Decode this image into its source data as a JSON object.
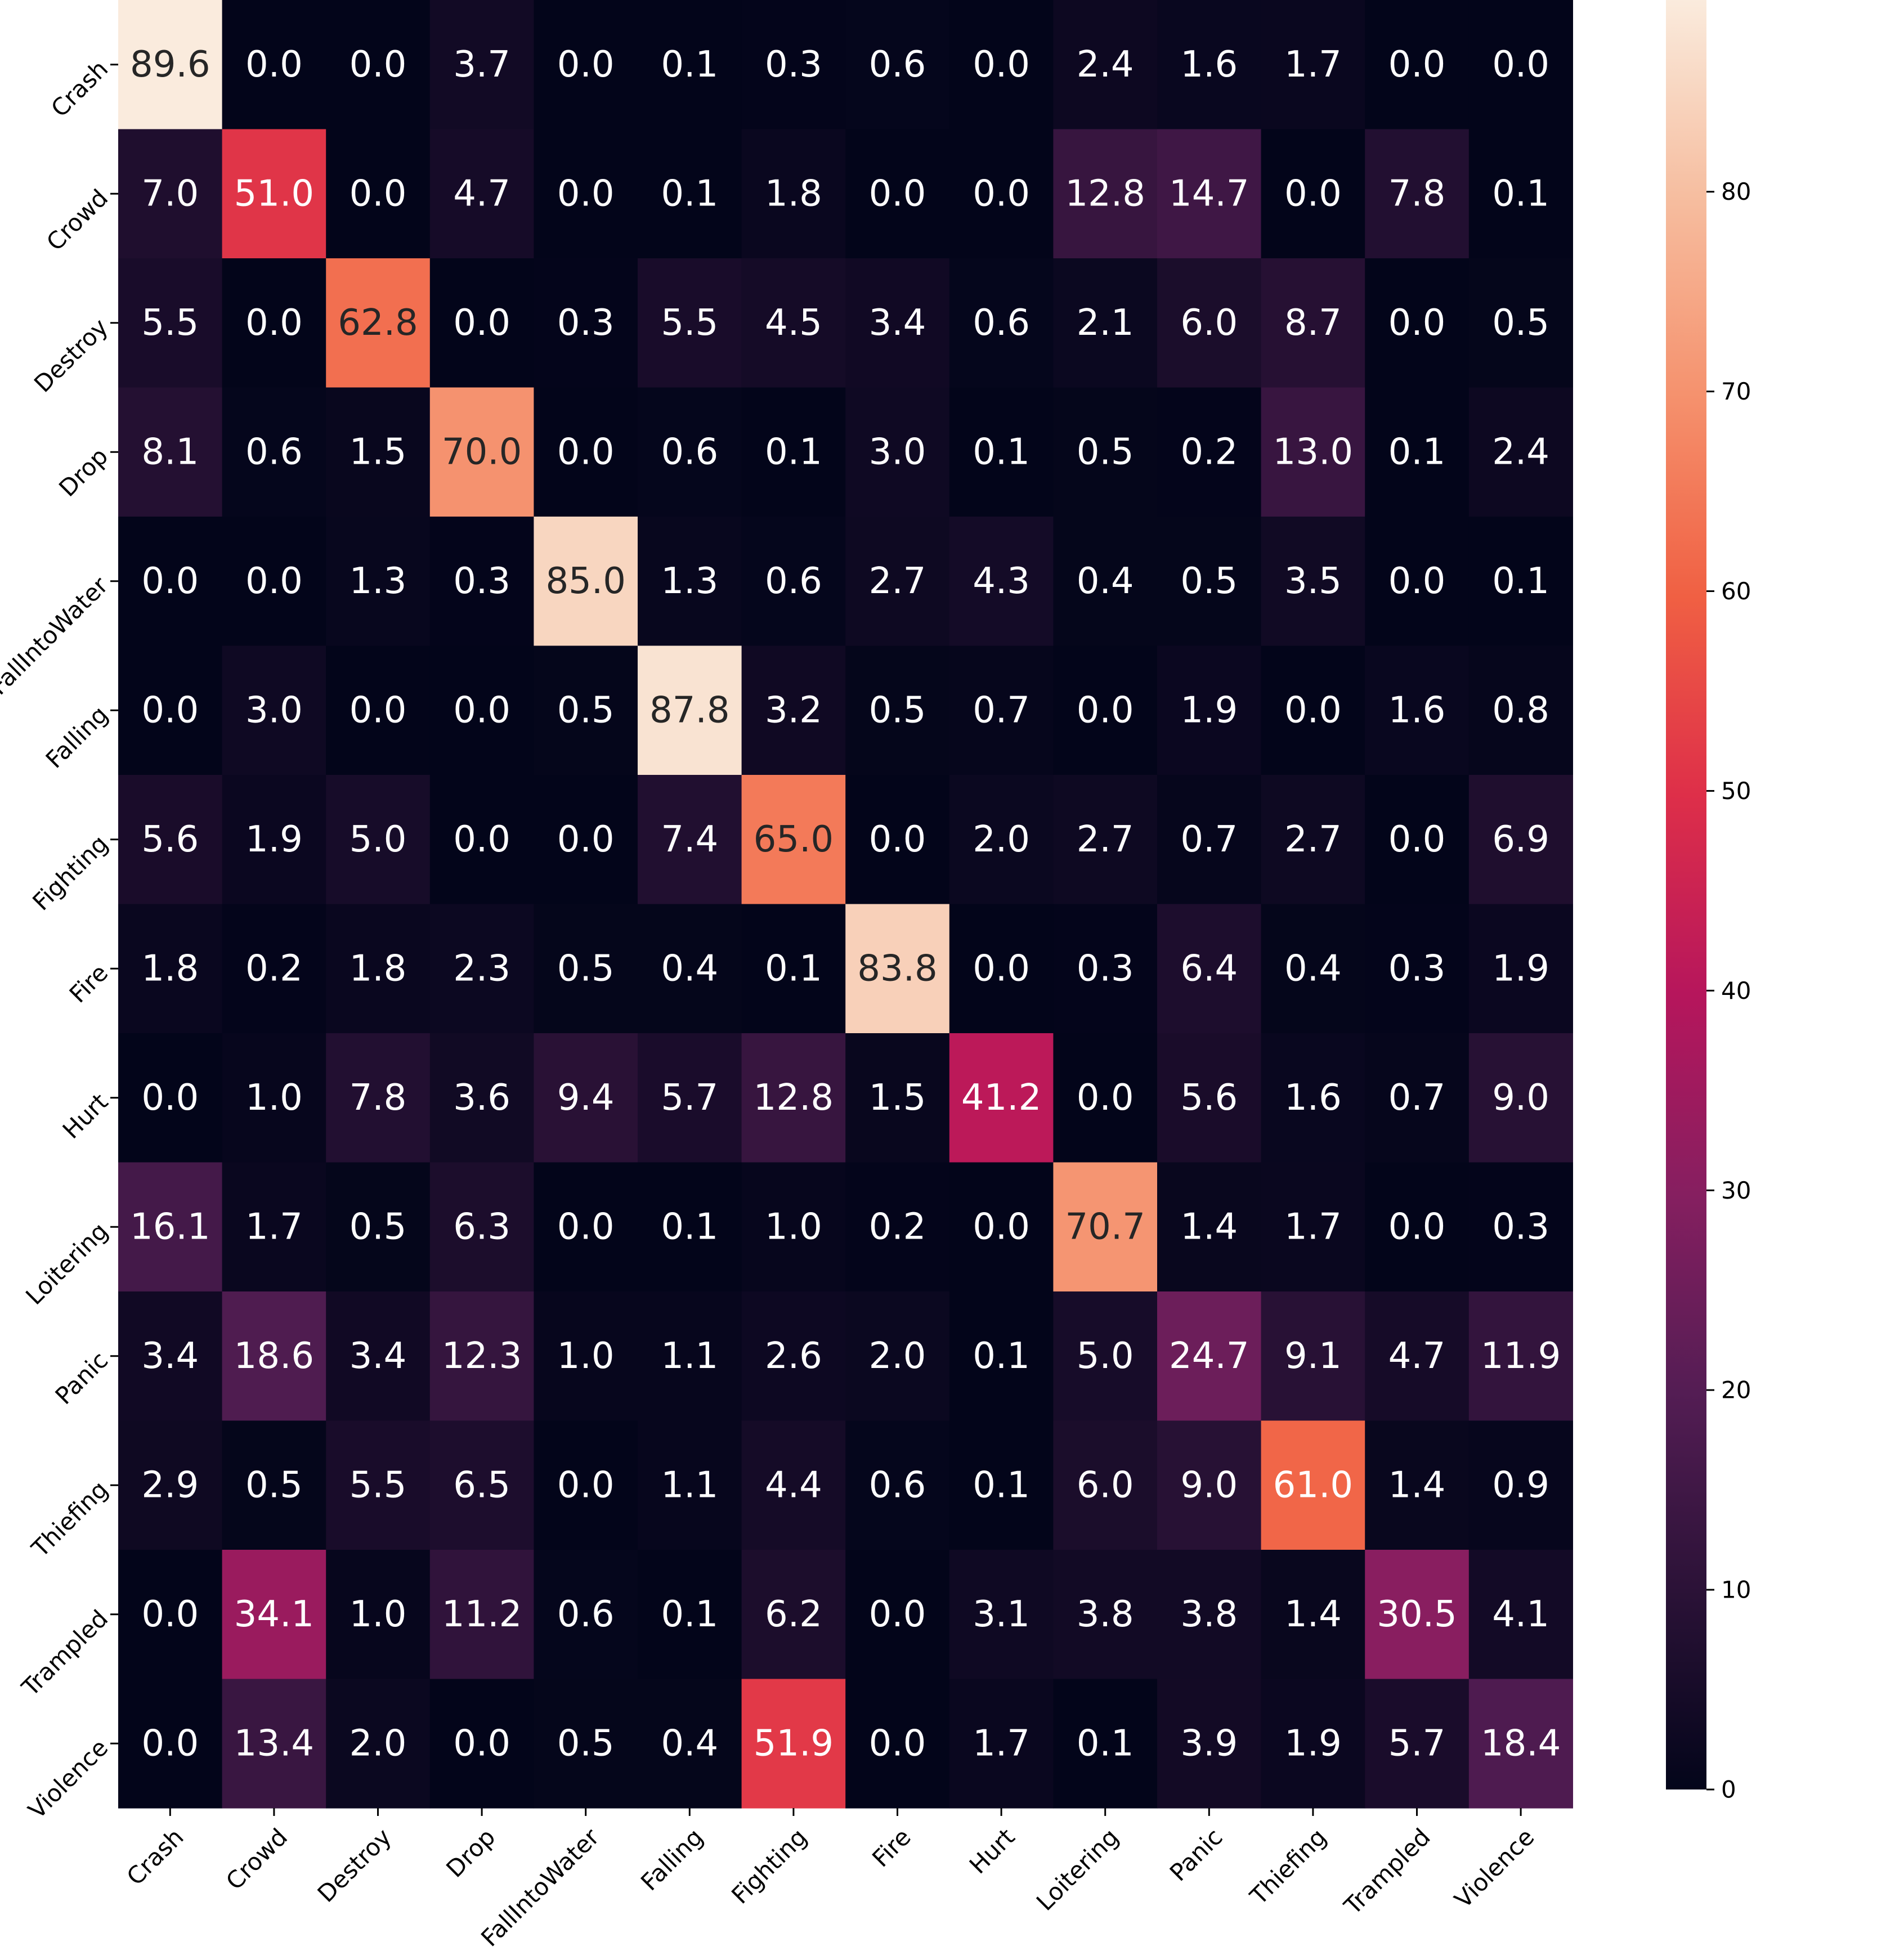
{
  "chart_data": {
    "type": "heatmap",
    "title": "",
    "xlabel": "",
    "ylabel": "",
    "x_categories": [
      "Crash",
      "Crowd",
      "Destroy",
      "Drop",
      "FallIntoWater",
      "Falling",
      "Fighting",
      "Fire",
      "Hurt",
      "Loitering",
      "Panic",
      "Thiefing",
      "Trampled",
      "Violence"
    ],
    "y_categories": [
      "Crash",
      "Crowd",
      "Destroy",
      "Drop",
      "FallIntoWater",
      "Falling",
      "Fighting",
      "Fire",
      "Hurt",
      "Loitering",
      "Panic",
      "Thiefing",
      "Trampled",
      "Violence"
    ],
    "values": [
      [
        89.6,
        0.0,
        0.0,
        3.7,
        0.0,
        0.1,
        0.3,
        0.6,
        0.0,
        2.4,
        1.6,
        1.7,
        0.0,
        0.0
      ],
      [
        7.0,
        51.0,
        0.0,
        4.7,
        0.0,
        0.1,
        1.8,
        0.0,
        0.0,
        12.8,
        14.7,
        0.0,
        7.8,
        0.1
      ],
      [
        5.5,
        0.0,
        62.8,
        0.0,
        0.3,
        5.5,
        4.5,
        3.4,
        0.6,
        2.1,
        6.0,
        8.7,
        0.0,
        0.5
      ],
      [
        8.1,
        0.6,
        1.5,
        70.0,
        0.0,
        0.6,
        0.1,
        3.0,
        0.1,
        0.5,
        0.2,
        13.0,
        0.1,
        2.4
      ],
      [
        0.0,
        0.0,
        1.3,
        0.3,
        85.0,
        1.3,
        0.6,
        2.7,
        4.3,
        0.4,
        0.5,
        3.5,
        0.0,
        0.1
      ],
      [
        0.0,
        3.0,
        0.0,
        0.0,
        0.5,
        87.8,
        3.2,
        0.5,
        0.7,
        0.0,
        1.9,
        0.0,
        1.6,
        0.8
      ],
      [
        5.6,
        1.9,
        5.0,
        0.0,
        0.0,
        7.4,
        65.0,
        0.0,
        2.0,
        2.7,
        0.7,
        2.7,
        0.0,
        6.9
      ],
      [
        1.8,
        0.2,
        1.8,
        2.3,
        0.5,
        0.4,
        0.1,
        83.8,
        0.0,
        0.3,
        6.4,
        0.4,
        0.3,
        1.9
      ],
      [
        0.0,
        1.0,
        7.8,
        3.6,
        9.4,
        5.7,
        12.8,
        1.5,
        41.2,
        0.0,
        5.6,
        1.6,
        0.7,
        9.0
      ],
      [
        16.1,
        1.7,
        0.5,
        6.3,
        0.0,
        0.1,
        1.0,
        0.2,
        0.0,
        70.7,
        1.4,
        1.7,
        0.0,
        0.3
      ],
      [
        3.4,
        18.6,
        3.4,
        12.3,
        1.0,
        1.1,
        2.6,
        2.0,
        0.1,
        5.0,
        24.7,
        9.1,
        4.7,
        11.9
      ],
      [
        2.9,
        0.5,
        5.5,
        6.5,
        0.0,
        1.1,
        4.4,
        0.6,
        0.1,
        6.0,
        9.0,
        61.0,
        1.4,
        0.9
      ],
      [
        0.0,
        34.1,
        1.0,
        11.2,
        0.6,
        0.1,
        6.2,
        0.0,
        3.1,
        3.8,
        3.8,
        1.4,
        30.5,
        4.1
      ],
      [
        0.0,
        13.4,
        2.0,
        0.0,
        0.5,
        0.4,
        51.9,
        0.0,
        1.7,
        0.1,
        3.9,
        1.9,
        5.7,
        18.4
      ]
    ],
    "value_format": "1 decimal",
    "colormap": "rocket",
    "colorbar": {
      "range": [
        0,
        89.6
      ],
      "ticks": [
        0,
        10,
        20,
        30,
        40,
        50,
        60,
        70,
        80
      ],
      "tick_labels": [
        "0",
        "10",
        "20",
        "30",
        "40",
        "50",
        "60",
        "70",
        "80"
      ],
      "placement": "right"
    },
    "grid": false,
    "legend": "none"
  },
  "colors": {
    "dark_text": "#262626",
    "light_text": "#ffffff",
    "cmap_stops": [
      "#03051a",
      "#2b1237",
      "#541d54",
      "#861f60",
      "#b6165c",
      "#de2f49",
      "#f06043",
      "#f5916d",
      "#f6bd9f",
      "#faebdd"
    ]
  }
}
